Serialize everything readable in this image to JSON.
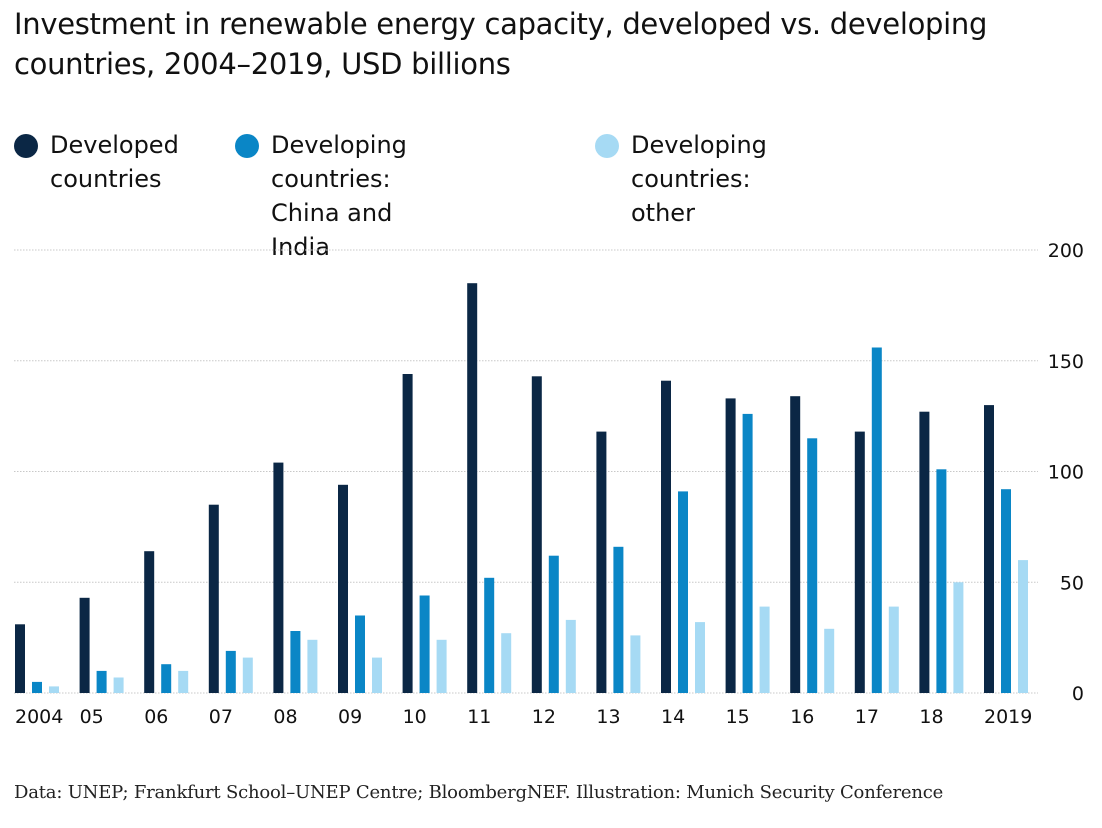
{
  "title": "Investment in renewable energy capacity, developed vs. developing countries, 2004–2019, USD billions",
  "source": "Data: UNEP; Frankfurt School–UNEP Centre; BloombergNEF. Illustration: Munich Security Conference",
  "colors": {
    "developed": "#0b2745",
    "china_india": "#0a86c6",
    "other": "#a6daf4",
    "grid": "#c8c8c8"
  },
  "legend": [
    {
      "label": "Developed\ncountries",
      "color_key": "developed"
    },
    {
      "label": "Developing countries:\nChina and India",
      "color_key": "china_india"
    },
    {
      "label": "Developing countries:\nother",
      "color_key": "other"
    }
  ],
  "chart_data": {
    "type": "bar",
    "title": "Investment in renewable energy capacity, developed vs. developing countries, 2004–2019, USD billions",
    "xlabel": "",
    "ylabel": "USD billions",
    "categories": [
      "2004",
      "05",
      "06",
      "07",
      "08",
      "09",
      "10",
      "11",
      "12",
      "13",
      "14",
      "15",
      "16",
      "17",
      "18",
      "2019"
    ],
    "ylim": [
      0,
      200
    ],
    "yticks": [
      0,
      50,
      100,
      150,
      200
    ],
    "y_axis_side": "right",
    "grid": true,
    "legend_position": "top-left",
    "series": [
      {
        "name": "Developed countries",
        "color_key": "developed",
        "values": [
          31,
          43,
          64,
          85,
          104,
          94,
          144,
          185,
          143,
          118,
          141,
          133,
          134,
          118,
          127,
          130
        ]
      },
      {
        "name": "Developing countries: China and India",
        "color_key": "china_india",
        "values": [
          5,
          10,
          13,
          19,
          28,
          35,
          44,
          52,
          62,
          66,
          91,
          126,
          115,
          156,
          101,
          92
        ]
      },
      {
        "name": "Developing countries: other",
        "color_key": "other",
        "values": [
          3,
          7,
          10,
          16,
          24,
          16,
          24,
          27,
          33,
          26,
          32,
          39,
          29,
          39,
          50,
          60
        ]
      }
    ]
  }
}
